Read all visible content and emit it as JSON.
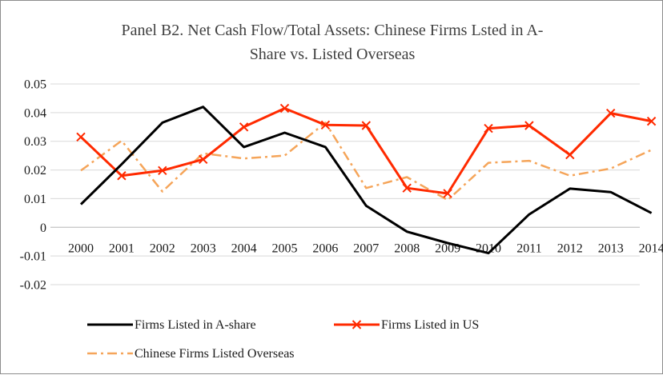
{
  "chart_data": {
    "type": "line",
    "title_lines": [
      "Panel B2. Net Cash Flow/Total Assets: Chinese Firms Lsted in A-",
      "Share vs. Listed Overseas"
    ],
    "categories": [
      "2000",
      "2001",
      "2002",
      "2003",
      "2004",
      "2005",
      "2006",
      "2007",
      "2008",
      "2009",
      "2010",
      "2011",
      "2012",
      "2013",
      "2014"
    ],
    "ylim": [
      -0.02,
      0.05
    ],
    "yticks": [
      0.05,
      0.04,
      0.03,
      0.02,
      0.01,
      0,
      -0.01,
      -0.02
    ],
    "ytick_labels": [
      "0.05",
      "0.04",
      "0.03",
      "0.02",
      "0.01",
      "0",
      "-0.01",
      "-0.02"
    ],
    "grid": true,
    "legend_position": "bottom",
    "series": [
      {
        "name": "Firms Listed in A-share",
        "color": "#000000",
        "style": "solid",
        "marker": "none",
        "values": [
          0.008,
          0.022,
          0.0365,
          0.042,
          0.028,
          0.033,
          0.028,
          0.0075,
          -0.0015,
          -0.0055,
          -0.009,
          0.0045,
          0.0135,
          0.0123,
          0.005
        ]
      },
      {
        "name": "Firms Listed in US",
        "color": "#ff2a00",
        "style": "solid",
        "marker": "x",
        "values": [
          0.0315,
          0.018,
          0.0198,
          0.0237,
          0.035,
          0.0415,
          0.0357,
          0.0355,
          0.0137,
          0.0118,
          0.0345,
          0.0355,
          0.0253,
          0.0398,
          0.037
        ]
      },
      {
        "name": "Chinese Firms Listed Overseas",
        "color": "#f5a55a",
        "style": "dashdot",
        "marker": "none",
        "values": [
          0.0198,
          0.0302,
          0.0125,
          0.0258,
          0.024,
          0.025,
          0.0365,
          0.0137,
          0.0175,
          0.0095,
          0.0225,
          0.0232,
          0.018,
          0.0205,
          0.027
        ]
      }
    ]
  }
}
